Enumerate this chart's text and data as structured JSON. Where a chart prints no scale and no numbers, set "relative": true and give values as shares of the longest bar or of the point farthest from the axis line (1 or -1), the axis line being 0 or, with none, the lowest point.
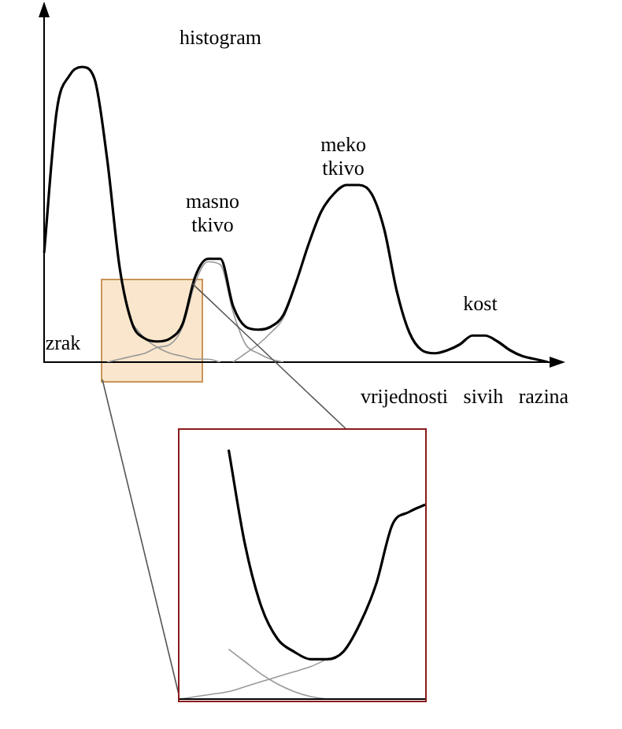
{
  "chart_data": [
    {
      "type": "line",
      "relative": true,
      "ylabel": "histogram",
      "xlabel": "vrijednosti sivih razina",
      "legend": false,
      "marker": "none",
      "annotations": [
        "zrak",
        "masno tkivo",
        "meko tkivo",
        "kost"
      ],
      "categories": [
        null,
        null,
        null,
        null,
        null,
        null,
        null,
        null,
        null,
        null,
        null,
        null,
        null,
        null,
        null,
        null,
        null,
        null,
        null,
        null,
        null,
        null,
        null,
        null,
        null,
        null,
        null,
        null,
        null,
        null,
        null,
        null,
        null,
        null,
        null,
        null,
        null,
        null,
        null,
        null,
        null
      ],
      "series": [
        {
          "color": "#000000",
          "values": [
            0.37,
            0.85,
            0.97,
            1,
            0.96,
            0.69,
            0.32,
            0.13,
            0.08,
            0.07,
            0.08,
            0.13,
            0.29,
            0.35,
            0.35,
            0.19,
            0.12,
            0.11,
            0.12,
            0.16,
            0.27,
            0.4,
            0.51,
            0.57,
            0.6,
            0.6,
            0.57,
            0.45,
            0.24,
            0.1,
            0.04,
            0.03,
            0.04,
            0.06,
            0.09,
            0.09,
            0.07,
            0.04,
            0.02,
            0.01,
            0
          ]
        },
        {
          "color": "#999999",
          "values": [
            null,
            null,
            null,
            null,
            null,
            null,
            null,
            0.13,
            0.08,
            0.05,
            0.03,
            0.02,
            0.01,
            0.01,
            0,
            null,
            null,
            null,
            null,
            null,
            null,
            null,
            null,
            null,
            null,
            null,
            null,
            null,
            null,
            null,
            null,
            null,
            null,
            null,
            null,
            null,
            null,
            null,
            null,
            null,
            null
          ]
        },
        {
          "color": "#999999",
          "values": [
            null,
            null,
            null,
            null,
            null,
            0,
            0.01,
            0.02,
            0.03,
            0.05,
            0.06,
            0.12,
            0.27,
            0.34,
            0.33,
            0.17,
            0.06,
            0.03,
            0.01,
            0,
            null,
            null,
            null,
            null,
            null,
            null,
            null,
            null,
            null,
            null,
            null,
            null,
            null,
            null,
            null,
            null,
            null,
            null,
            null,
            null,
            null
          ]
        },
        {
          "color": "#999999",
          "values": [
            null,
            null,
            null,
            null,
            null,
            null,
            null,
            null,
            null,
            null,
            null,
            null,
            null,
            null,
            null,
            0,
            0.03,
            0.06,
            0.1,
            0.15,
            0.27,
            null,
            null,
            null,
            null,
            null,
            null,
            null,
            null,
            null,
            null,
            null,
            null,
            null,
            null,
            null,
            null,
            null,
            null,
            null,
            null
          ]
        }
      ]
    },
    {
      "type": "line",
      "relative": true,
      "legend": false,
      "marker": "none",
      "categories": [
        null,
        null,
        null,
        null,
        null,
        null,
        null,
        null,
        null,
        null,
        null,
        null,
        null,
        null,
        null,
        null
      ],
      "series": [
        {
          "color": "#000000",
          "values": [
            null,
            null,
            null,
            1,
            0.62,
            0.37,
            0.24,
            0.19,
            0.16,
            0.16,
            0.19,
            0.3,
            0.46,
            0.7,
            0.75,
            0.78
          ]
        },
        {
          "color": "#999999",
          "values": [
            0,
            0.01,
            0.02,
            0.03,
            0.05,
            0.07,
            0.09,
            0.11,
            0.13,
            0.16,
            null,
            null,
            null,
            null,
            null,
            null
          ]
        },
        {
          "color": "#999999",
          "values": [
            null,
            null,
            null,
            0.2,
            0.15,
            0.1,
            0.06,
            0.03,
            0.01,
            0,
            null,
            null,
            null,
            null,
            null,
            null
          ]
        }
      ]
    }
  ]
}
